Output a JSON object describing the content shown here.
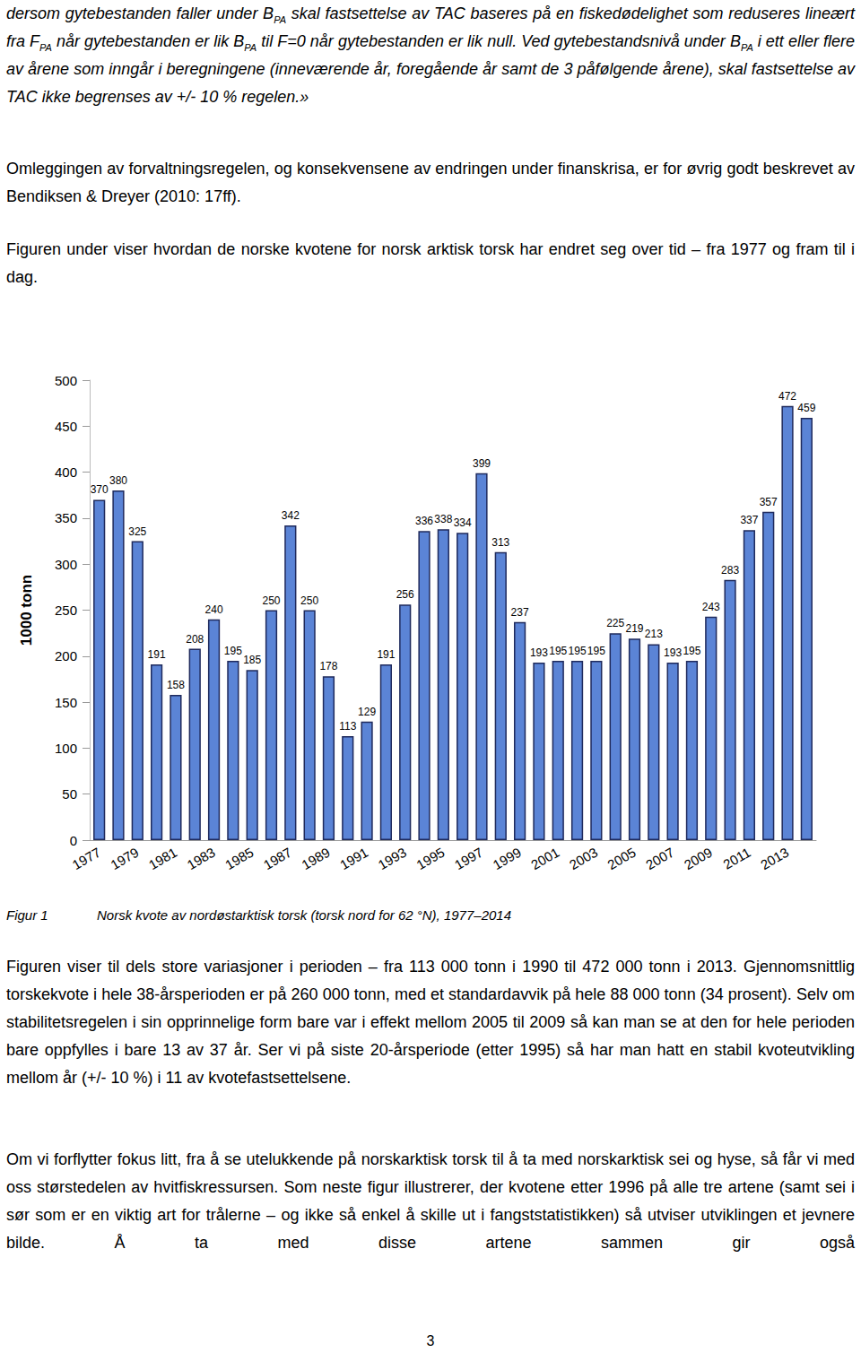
{
  "paragraphs_top": [
    [
      {
        "text": "dersom gytebestanden faller under B"
      },
      {
        "text": "PA",
        "sub": true
      },
      {
        "text": " skal fastsettelse av TAC baseres på en fiskedødelighet som reduseres lineært fra F"
      },
      {
        "text": "PA",
        "sub": true
      },
      {
        "text": " når gytebestanden er lik B"
      },
      {
        "text": "PA",
        "sub": true
      },
      {
        "text": " til F=0 når gytebestanden er lik null. Ved gytebestandsnivå under B"
      },
      {
        "text": "PA",
        "sub": true
      },
      {
        "text": " i ett eller flere av årene som inngår i beregningene (inneværende år, foregående år samt de 3 påfølgende årene), skal fastsettelse av TAC ikke begrenses av +/- 10 % regelen.»"
      }
    ],
    [
      {
        "text": "Omleggingen av forvaltningsregelen, og konsekvensene av endringen under finanskrisa, er for øvrig godt beskrevet av Bendiksen & Dreyer (2010: 17ff)."
      }
    ],
    [
      {
        "text": "Figuren under viser hvordan de norske kvotene for norsk arktisk torsk har endret seg over tid – fra 1977 og fram til i dag."
      }
    ]
  ],
  "chart_data": {
    "type": "bar",
    "ylabel": "1000 tonn",
    "categories": [
      "1977",
      null,
      "1979",
      null,
      "1981",
      null,
      "1983",
      null,
      "1985",
      null,
      "1987",
      null,
      "1989",
      null,
      "1991",
      null,
      "1993",
      null,
      "1995",
      null,
      "1997",
      null,
      "1999",
      null,
      "2001",
      null,
      "2003",
      null,
      "2005",
      null,
      "2007",
      null,
      "2009",
      null,
      "2011",
      null,
      "2013",
      null
    ],
    "values": [
      370,
      380,
      325,
      191,
      158,
      208,
      240,
      195,
      185,
      250,
      342,
      250,
      178,
      113,
      129,
      191,
      256,
      336,
      338,
      334,
      399,
      313,
      237,
      193,
      195,
      195,
      195,
      225,
      219,
      213,
      193,
      195,
      243,
      283,
      337,
      357,
      472,
      459
    ],
    "color": "#5b84d6",
    "ylim": [
      0,
      500
    ],
    "yticks": [
      0,
      50,
      100,
      150,
      200,
      250,
      300,
      350,
      400,
      450,
      500
    ],
    "grid": false,
    "data_labels": true
  },
  "figure_caption": {
    "label": "Figur 1",
    "text": "Norsk kvote av nordøstarktisk torsk (torsk nord for 62 °N), 1977–2014"
  },
  "paragraphs_bottom": [
    "Figuren viser til dels store variasjoner i perioden – fra 113 000 tonn i 1990 til 472 000 tonn i 2013. Gjennomsnittlig torskekvote i hele 38-årsperioden er på 260 000 tonn, med et standardavvik på hele 88 000 tonn (34 prosent). Selv om stabilitetsregelen i sin opprinnelige form bare var i effekt mellom 2005 til 2009 så kan man se at den for hele perioden bare oppfylles i bare 13 av 37 år. Ser vi på siste 20-årsperiode (etter 1995) så har man hatt en stabil kvoteutvikling mellom år (+/- 10 %) i 11 av kvotefastsettelsene.",
    "Om vi forflytter fokus litt, fra å se utelukkende på norskarktisk torsk til å ta med norskarktisk sei og hyse, så får vi med oss størstedelen av hvitfiskressursen. Som neste figur illustrerer, der kvotene etter 1996 på alle tre artene (samt sei i sør som er en viktig art for trålerne – og ikke så enkel å skille ut i fangststatistikken) så utviser utviklingen et jevnere bilde. Å ta med disse artene sammen gir også"
  ],
  "page_number": "3"
}
